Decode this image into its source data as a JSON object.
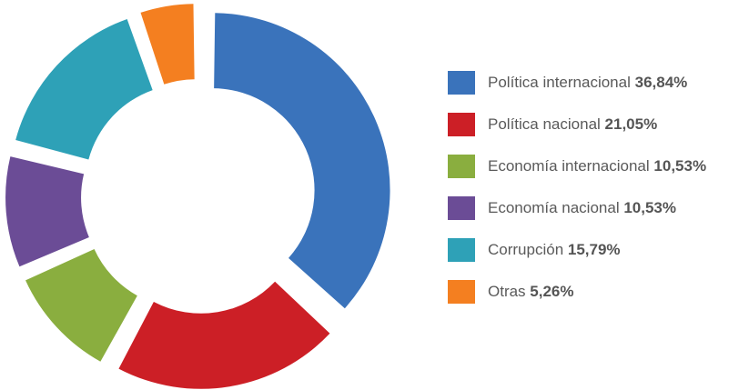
{
  "chart_data": {
    "type": "pie",
    "style": "donut-exploded",
    "legend_position": "right",
    "slices": [
      {
        "label": "Política internacional",
        "value": 36.84,
        "value_label": "36,84%",
        "color": "#3a73bb"
      },
      {
        "label": "Política nacional",
        "value": 21.05,
        "value_label": "21,05%",
        "color": "#cc1f26"
      },
      {
        "label": "Economía internacional",
        "value": 10.53,
        "value_label": "10,53%",
        "color": "#8aae3f"
      },
      {
        "label": "Economía nacional",
        "value": 10.53,
        "value_label": "10,53%",
        "color": "#6b4c96"
      },
      {
        "label": "Corrupción",
        "value": 15.79,
        "value_label": "15,79%",
        "color": "#2ea1b7"
      },
      {
        "label": "Otras",
        "value": 5.26,
        "value_label": "5,26%",
        "color": "#f47f20"
      }
    ]
  }
}
